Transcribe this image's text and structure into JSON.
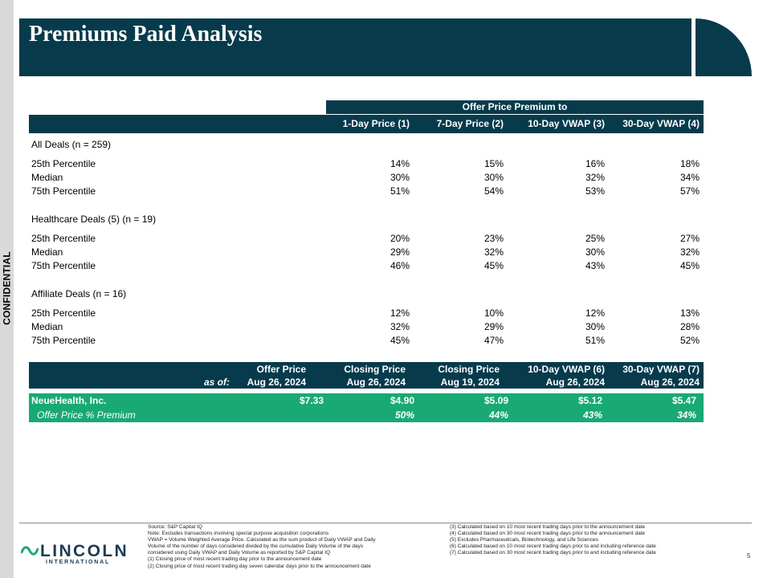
{
  "side_label": "CONFIDENTIAL",
  "title": "Premiums Paid Analysis",
  "premium_table": {
    "super_header": "Offer Price Premium to",
    "columns": [
      "1-Day Price (1)",
      "7-Day Price (2)",
      "10-Day VWAP (3)",
      "30-Day VWAP (4)"
    ],
    "groups": [
      {
        "title": "All Deals (n = 259)",
        "rows": [
          {
            "label": "25th Percentile",
            "values": [
              "14%",
              "15%",
              "16%",
              "18%"
            ]
          },
          {
            "label": "Median",
            "values": [
              "30%",
              "30%",
              "32%",
              "34%"
            ]
          },
          {
            "label": "75th Percentile",
            "values": [
              "51%",
              "54%",
              "53%",
              "57%"
            ]
          }
        ]
      },
      {
        "title": "Healthcare Deals (5) (n = 19)",
        "rows": [
          {
            "label": "25th Percentile",
            "values": [
              "20%",
              "23%",
              "25%",
              "27%"
            ]
          },
          {
            "label": "Median",
            "values": [
              "29%",
              "32%",
              "30%",
              "32%"
            ]
          },
          {
            "label": "75th Percentile",
            "values": [
              "46%",
              "45%",
              "43%",
              "45%"
            ]
          }
        ]
      },
      {
        "title": "Affiliate Deals (n = 16)",
        "rows": [
          {
            "label": "25th Percentile",
            "values": [
              "12%",
              "10%",
              "12%",
              "13%"
            ]
          },
          {
            "label": "Median",
            "values": [
              "32%",
              "29%",
              "30%",
              "28%"
            ]
          },
          {
            "label": "75th Percentile",
            "values": [
              "45%",
              "47%",
              "51%",
              "52%"
            ]
          }
        ]
      }
    ]
  },
  "price_table": {
    "as_of_label": "as of:",
    "columns": [
      {
        "name": "Offer Price",
        "date": "Aug 26, 2024"
      },
      {
        "name": "Closing Price",
        "date": "Aug 26, 2024"
      },
      {
        "name": "Closing Price",
        "date": "Aug 19, 2024"
      },
      {
        "name": "10-Day VWAP (6)",
        "date": "Aug 26, 2024"
      },
      {
        "name": "30-Day VWAP (7)",
        "date": "Aug 26, 2024"
      }
    ],
    "company_row": {
      "label": "NeueHealth, Inc.",
      "values": [
        "$7.33",
        "$4.90",
        "$5.09",
        "$5.12",
        "$5.47"
      ]
    },
    "premium_row": {
      "label": "Offer Price % Premium",
      "values": [
        "",
        "50%",
        "44%",
        "43%",
        "34%"
      ]
    }
  },
  "footer": {
    "logo_word": "LINCOLN",
    "logo_sub": "INTERNATIONAL",
    "notes_left": [
      "Source: S&P Capital IQ",
      "Note: Excludes transactions involving special purpose acquisition corporations",
      "VWAP = Volume Weighted Average Price. Calculated as the sum product of Daily VWAP and Daily",
      "Volume of the number of days considered divided by the cumulative Daily Volume of the days",
      "considered using Daily VWAP and Daily Volume as reported by S&P Capital IQ",
      "(1) Closing price of most recent trading day prior to the announcement date",
      "(2) Closing price of most recent trading day seven calendar days prior to the announcement date"
    ],
    "notes_right": [
      "(3) Calculated based on 10 most recent trading days prior to the announcement date",
      "(4) Calculated based on 30 most recent trading days prior to the announcement date",
      "(5) Excludes Pharmaceuticals, Biotechnology, and Life Sciences",
      "(6) Calculated based on 10 most recent trading days prior to and including reference date",
      "(7) Calculated based on 30 most recent trading days prior to and including reference date"
    ],
    "page_number": "5"
  },
  "colors": {
    "navy": "#073b4c",
    "green": "#19a974"
  }
}
